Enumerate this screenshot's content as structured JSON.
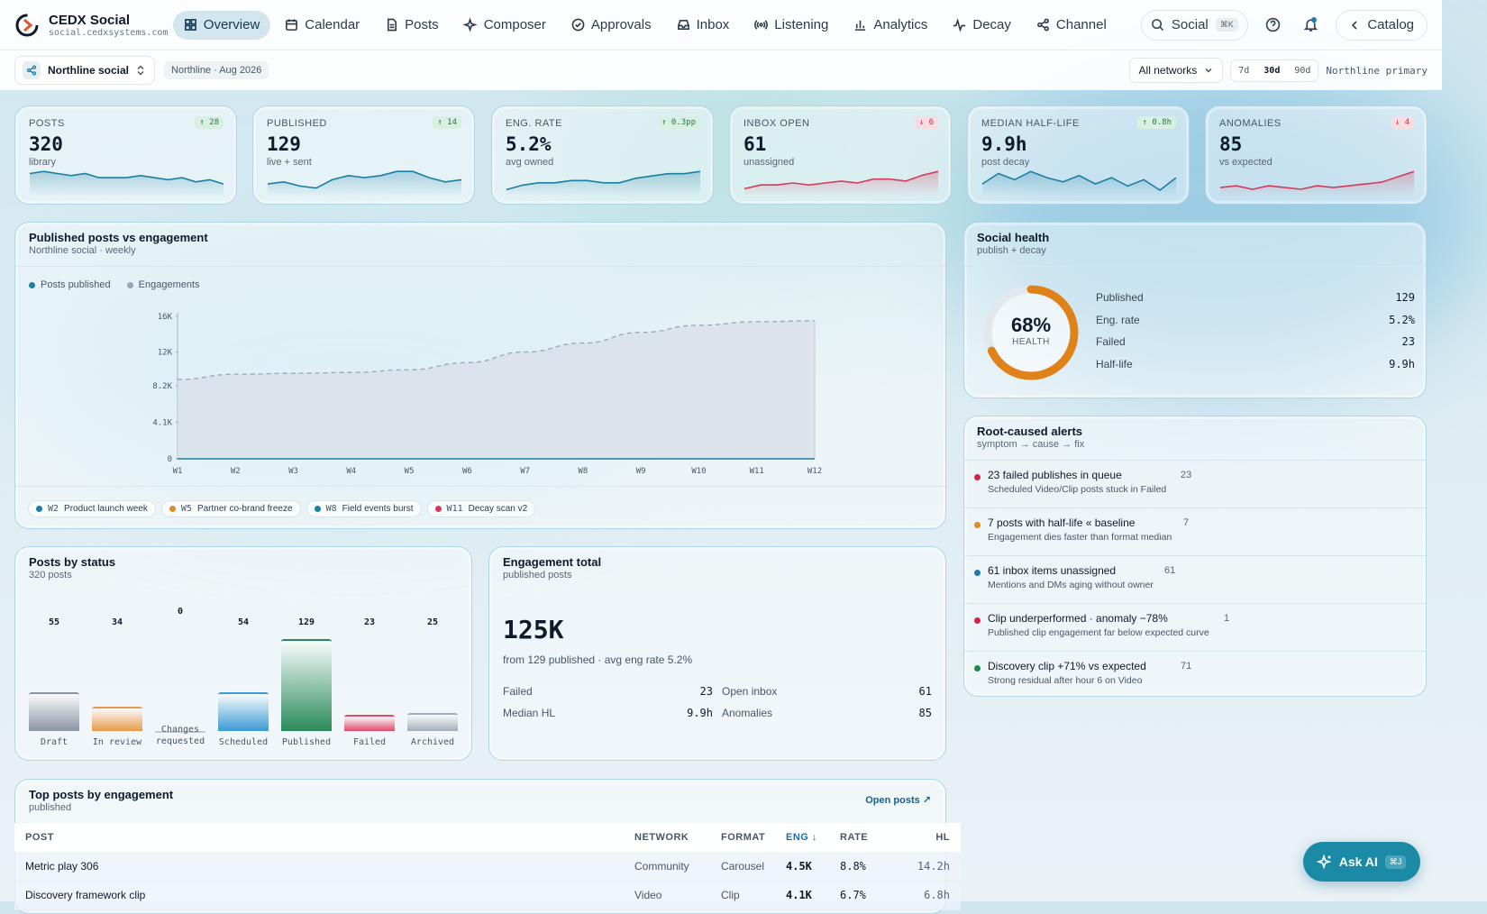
{
  "app": {
    "name": "CEDX Social",
    "url": "social.cedxsystems.com"
  },
  "nav": {
    "items": [
      {
        "label": "Overview",
        "icon": "grid-icon",
        "active": true
      },
      {
        "label": "Calendar",
        "icon": "calendar-icon"
      },
      {
        "label": "Posts",
        "icon": "file-icon"
      },
      {
        "label": "Composer",
        "icon": "sparkle-icon"
      },
      {
        "label": "Approvals",
        "icon": "check-circle-icon"
      },
      {
        "label": "Inbox",
        "icon": "inbox-icon"
      },
      {
        "label": "Listening",
        "icon": "radio-icon"
      },
      {
        "label": "Analytics",
        "icon": "bar-chart-icon"
      },
      {
        "label": "Decay",
        "icon": "pulse-icon"
      },
      {
        "label": "Channel",
        "icon": "share-icon"
      }
    ],
    "search_label": "Social",
    "search_kbd": "⌘K",
    "catalog_label": "Catalog"
  },
  "subbar": {
    "workspace": "Northline social",
    "period": "Northline · Aug 2026",
    "network_select": "All networks",
    "ranges": [
      "7d",
      "30d",
      "90d"
    ],
    "range_selected": "30d",
    "primary": "Northline primary"
  },
  "kpis": [
    {
      "label": "POSTS",
      "value": "320",
      "note": "library",
      "delta": "↑ 28",
      "dir": "up",
      "spark": [
        11,
        12,
        11,
        10,
        11,
        9,
        9,
        9,
        10,
        9,
        8,
        9,
        7,
        8,
        6
      ],
      "color": "#1a7fa4"
    },
    {
      "label": "PUBLISHED",
      "value": "129",
      "note": "live + sent",
      "delta": "↑ 14",
      "dir": "up",
      "spark": [
        6,
        7,
        5,
        4,
        8,
        10,
        9,
        10,
        12,
        12,
        9,
        7,
        8
      ],
      "color": "#1a7fa4"
    },
    {
      "label": "ENG. RATE",
      "value": "5.2%",
      "note": "avg owned",
      "delta": "↑ 0.3pp",
      "dir": "up",
      "spark": [
        3,
        5,
        6,
        6,
        7,
        7,
        6,
        6,
        8,
        9,
        10,
        10,
        11
      ],
      "color": "#1a7fa4"
    },
    {
      "label": "INBOX OPEN",
      "value": "61",
      "note": "unassigned",
      "delta": "↓ 6",
      "dir": "down",
      "spark": [
        4,
        6,
        6,
        7,
        6,
        7,
        8,
        7,
        9,
        9,
        8,
        11,
        13
      ],
      "color": "#d63a5a"
    },
    {
      "label": "MEDIAN HALF-LIFE",
      "value": "9.9h",
      "note": "post decay",
      "delta": "↑ 0.8h",
      "dir": "up",
      "spark": [
        6,
        11,
        8,
        12,
        9,
        7,
        10,
        6,
        9,
        5,
        8,
        3,
        9
      ],
      "color": "#1a7fa4"
    },
    {
      "label": "ANOMALIES",
      "value": "85",
      "note": "vs expected",
      "delta": "↓ 4",
      "dir": "down",
      "spark": [
        5,
        6,
        4,
        6,
        5,
        4,
        6,
        5,
        6,
        7,
        8,
        11,
        14
      ],
      "color": "#d63a5a"
    }
  ],
  "chart_data": {
    "type": "area",
    "title": "Published posts vs engagement",
    "subtitle": "Northline social · weekly",
    "categories": [
      "W1",
      "W2",
      "W3",
      "W4",
      "W5",
      "W6",
      "W7",
      "W8",
      "W9",
      "W10",
      "W11",
      "W12"
    ],
    "series": [
      {
        "name": "Posts published",
        "values": [
          0,
          0,
          0,
          0,
          0,
          0,
          0,
          0,
          0,
          0,
          0,
          0
        ],
        "color": "#1a7fa4"
      },
      {
        "name": "Engagements",
        "values": [
          8900,
          9500,
          9600,
          9700,
          10000,
          10800,
          12000,
          13000,
          14200,
          15000,
          15400,
          15500
        ],
        "color": "#9aa6b4"
      }
    ],
    "yticks": [
      "16K",
      "12K",
      "8.2K",
      "4.1K",
      "0"
    ],
    "ylim": [
      0,
      16400
    ],
    "events": [
      {
        "week": "W2",
        "label": "Product launch week",
        "color": "#1a7fa4"
      },
      {
        "week": "W5",
        "label": "Partner co-brand freeze",
        "color": "#e08a2a"
      },
      {
        "week": "W8",
        "label": "Field events burst",
        "color": "#1a7fa4"
      },
      {
        "week": "W11",
        "label": "Decay scan v2",
        "color": "#d63a5a"
      }
    ]
  },
  "health": {
    "title": "Social health",
    "sub": "publish + decay",
    "percent": 68,
    "percent_label": "68%",
    "caption": "HEALTH",
    "rows": [
      {
        "label": "Published",
        "value": "129"
      },
      {
        "label": "Eng. rate",
        "value": "5.2%"
      },
      {
        "label": "Failed",
        "value": "23"
      },
      {
        "label": "Half-life",
        "value": "9.9h"
      }
    ]
  },
  "alerts": {
    "title": "Root-caused alerts",
    "sub": "symptom → cause → fix",
    "items": [
      {
        "title": "23 failed publishes in queue",
        "count": "23",
        "sub": "Scheduled Video/Clip posts stuck in Failed",
        "color": "#d6204a"
      },
      {
        "title": "7 posts with half-life « baseline",
        "count": "7",
        "sub": "Engagement dies faster than format median",
        "color": "#e08a2a"
      },
      {
        "title": "61 inbox items unassigned",
        "count": "61",
        "sub": "Mentions and DMs aging without owner",
        "color": "#1a7fa4"
      },
      {
        "title": "Clip underperformed · anomaly −78%",
        "count": "1",
        "sub": "Published clip engagement far below expected curve",
        "color": "#d6204a"
      },
      {
        "title": "Discovery clip +71% vs expected",
        "count": "71",
        "sub": "Strong residual after hour 6 on Video",
        "color": "#1d8a4a"
      }
    ]
  },
  "status": {
    "title": "Posts by status",
    "sub": "320 posts",
    "bars": [
      {
        "label": "Draft",
        "value": 55,
        "color": "#8a94a4"
      },
      {
        "label": "In review",
        "value": 34,
        "color": "#e89a4a"
      },
      {
        "label": "Changes requested",
        "value": 0,
        "color": "#c0c8d2"
      },
      {
        "label": "Scheduled",
        "value": 54,
        "color": "#3a9ad6"
      },
      {
        "label": "Published",
        "value": 129,
        "color": "#2a8a5a"
      },
      {
        "label": "Failed",
        "value": 23,
        "color": "#e04a6a"
      },
      {
        "label": "Archived",
        "value": 25,
        "color": "#a2acba"
      }
    ]
  },
  "engagement": {
    "title": "Engagement total",
    "sub": "published posts",
    "total": "125K",
    "from": "from 129 published · avg eng rate 5.2%",
    "cells": [
      {
        "label": "Failed",
        "value": "23"
      },
      {
        "label": "Open inbox",
        "value": "61"
      },
      {
        "label": "Median HL",
        "value": "9.9h"
      },
      {
        "label": "Anomalies",
        "value": "85"
      }
    ]
  },
  "top_posts": {
    "title": "Top posts by engagement",
    "sub": "published",
    "open_link": "Open posts ↗",
    "headers": {
      "post": "POST",
      "network": "NETWORK",
      "format": "FORMAT",
      "eng": "ENG ↓",
      "rate": "RATE",
      "hl": "HL"
    },
    "rows": [
      {
        "post": "Metric play 306",
        "network": "Community",
        "format": "Carousel",
        "eng": "4.5K",
        "rate": "8.8%",
        "hl": "14.2h"
      },
      {
        "post": "Discovery framework clip",
        "network": "Video",
        "format": "Clip",
        "eng": "4.1K",
        "rate": "6.7%",
        "hl": "6.8h"
      }
    ]
  },
  "ask_ai": {
    "label": "Ask AI",
    "kbd": "⌘J"
  }
}
